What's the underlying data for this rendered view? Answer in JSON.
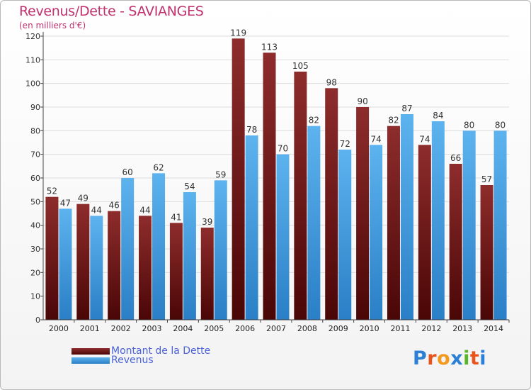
{
  "chart_data": {
    "type": "bar",
    "title": "Revenus/Dette - SAVIANGES",
    "subtitle": "(en milliers d'€)",
    "categories": [
      "2000",
      "2001",
      "2002",
      "2003",
      "2004",
      "2005",
      "2006",
      "2007",
      "2008",
      "2009",
      "2010",
      "2011",
      "2012",
      "2013",
      "2014"
    ],
    "series": [
      {
        "name": "Montant de la Dette",
        "color": "#7a1a1a",
        "values": [
          52,
          49,
          46,
          44,
          41,
          39,
          119,
          113,
          105,
          98,
          90,
          82,
          74,
          66,
          57
        ]
      },
      {
        "name": "Revenus",
        "color": "#3a9be0",
        "values": [
          47,
          44,
          60,
          62,
          54,
          59,
          78,
          70,
          82,
          72,
          74,
          87,
          84,
          80,
          80
        ]
      }
    ],
    "ylim": [
      0,
      120
    ],
    "yticks": [
      0,
      10,
      20,
      30,
      40,
      50,
      60,
      70,
      80,
      90,
      100,
      110,
      120
    ],
    "grid": true,
    "legend_position": "bottom-left"
  },
  "logo": {
    "text": "Proxiti",
    "letters": [
      "P",
      "r",
      "o",
      "x",
      "i",
      "t",
      "i"
    ],
    "colors": [
      "#2b7fd4",
      "#e8541e",
      "#f29a1f",
      "#2b7fd4",
      "#5bb52b",
      "#e8541e",
      "#2b7fd4"
    ]
  }
}
